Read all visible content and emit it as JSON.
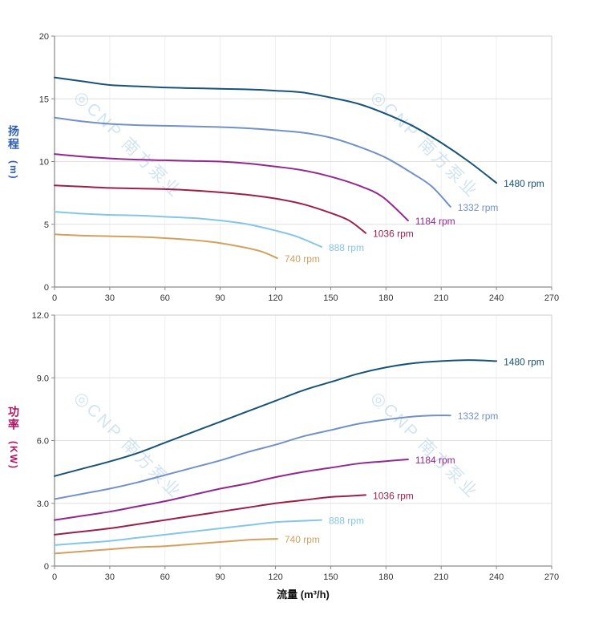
{
  "x_axis_title": "流量 (m³/h)",
  "watermark": {
    "text": "◎CNP 南方泵业",
    "color": "#aecfe8"
  },
  "chart_data": "see charts",
  "charts": [
    {
      "name": "head-vs-flow",
      "type": "line",
      "ylabel": "扬程",
      "ylabel_unit": "(m)",
      "ylabel_color": "#2f5fb3",
      "grid": true,
      "legend_position": "end-of-line",
      "xlim": [
        0,
        270
      ],
      "ylim": [
        0,
        20
      ],
      "xtick_values": [
        0,
        30,
        60,
        90,
        120,
        150,
        180,
        210,
        240,
        270
      ],
      "xtick_labels": [
        "0",
        "30",
        "60",
        "90",
        "120",
        "150",
        "180",
        "210",
        "240",
        "270"
      ],
      "ytick_values": [
        0,
        5,
        10,
        15,
        20
      ],
      "ytick_labels": [
        "0",
        "5",
        "10",
        "15",
        "20"
      ],
      "series": [
        {
          "name": "1480 rpm",
          "color": "#175379",
          "points": [
            [
              0,
              16.7
            ],
            [
              15,
              16.4
            ],
            [
              30,
              16.1
            ],
            [
              45,
              16.0
            ],
            [
              60,
              15.9
            ],
            [
              75,
              15.85
            ],
            [
              90,
              15.8
            ],
            [
              105,
              15.75
            ],
            [
              120,
              15.65
            ],
            [
              135,
              15.5
            ],
            [
              150,
              15.1
            ],
            [
              165,
              14.6
            ],
            [
              180,
              13.8
            ],
            [
              195,
              12.8
            ],
            [
              210,
              11.5
            ],
            [
              225,
              10.0
            ],
            [
              240,
              8.3
            ]
          ]
        },
        {
          "name": "1332 rpm",
          "color": "#7191c7",
          "points": [
            [
              0,
              13.5
            ],
            [
              15,
              13.2
            ],
            [
              30,
              13.0
            ],
            [
              45,
              12.9
            ],
            [
              60,
              12.85
            ],
            [
              75,
              12.8
            ],
            [
              90,
              12.75
            ],
            [
              105,
              12.65
            ],
            [
              120,
              12.5
            ],
            [
              135,
              12.3
            ],
            [
              150,
              11.9
            ],
            [
              165,
              11.2
            ],
            [
              180,
              10.3
            ],
            [
              195,
              9.0
            ],
            [
              205,
              8.0
            ],
            [
              215,
              6.4
            ]
          ]
        },
        {
          "name": "1184 rpm",
          "color": "#93278f",
          "points": [
            [
              0,
              10.6
            ],
            [
              15,
              10.4
            ],
            [
              30,
              10.25
            ],
            [
              45,
              10.15
            ],
            [
              60,
              10.1
            ],
            [
              75,
              10.05
            ],
            [
              90,
              10.0
            ],
            [
              105,
              9.85
            ],
            [
              120,
              9.6
            ],
            [
              135,
              9.3
            ],
            [
              150,
              8.8
            ],
            [
              165,
              8.1
            ],
            [
              178,
              7.2
            ],
            [
              192,
              5.3
            ]
          ]
        },
        {
          "name": "1036 rpm",
          "color": "#9e1f45",
          "points": [
            [
              0,
              8.1
            ],
            [
              15,
              8.0
            ],
            [
              30,
              7.9
            ],
            [
              45,
              7.85
            ],
            [
              60,
              7.8
            ],
            [
              75,
              7.7
            ],
            [
              90,
              7.55
            ],
            [
              105,
              7.35
            ],
            [
              120,
              7.05
            ],
            [
              135,
              6.6
            ],
            [
              150,
              5.9
            ],
            [
              160,
              5.3
            ],
            [
              169,
              4.3
            ]
          ]
        },
        {
          "name": "888 rpm",
          "color": "#85c6e8",
          "points": [
            [
              0,
              6.0
            ],
            [
              15,
              5.85
            ],
            [
              30,
              5.75
            ],
            [
              45,
              5.7
            ],
            [
              60,
              5.6
            ],
            [
              75,
              5.5
            ],
            [
              90,
              5.3
            ],
            [
              105,
              5.0
            ],
            [
              120,
              4.5
            ],
            [
              132,
              4.0
            ],
            [
              145,
              3.2
            ]
          ]
        },
        {
          "name": "740 rpm",
          "color": "#d3a05e",
          "points": [
            [
              0,
              4.2
            ],
            [
              15,
              4.1
            ],
            [
              30,
              4.05
            ],
            [
              45,
              4.0
            ],
            [
              60,
              3.9
            ],
            [
              75,
              3.75
            ],
            [
              90,
              3.5
            ],
            [
              105,
              3.1
            ],
            [
              113,
              2.8
            ],
            [
              121,
              2.3
            ]
          ]
        }
      ]
    },
    {
      "name": "power-vs-flow",
      "type": "line",
      "ylabel": "功率",
      "ylabel_unit": "(KW)",
      "ylabel_color": "#b0135f",
      "grid": true,
      "legend_position": "end-of-line",
      "xlim": [
        0,
        270
      ],
      "ylim": [
        0,
        12
      ],
      "xtick_values": [
        0,
        30,
        60,
        90,
        120,
        150,
        180,
        210,
        240,
        270
      ],
      "xtick_labels": [
        "0",
        "30",
        "60",
        "90",
        "120",
        "150",
        "180",
        "210",
        "240",
        "270"
      ],
      "ytick_values": [
        0,
        3,
        6,
        9,
        12
      ],
      "ytick_labels": [
        "0",
        "3.0",
        "6.0",
        "9.0",
        "12.0"
      ],
      "series": [
        {
          "name": "1480 rpm",
          "color": "#175379",
          "points": [
            [
              0,
              4.3
            ],
            [
              15,
              4.65
            ],
            [
              30,
              5.0
            ],
            [
              45,
              5.4
            ],
            [
              60,
              5.9
            ],
            [
              75,
              6.4
            ],
            [
              90,
              6.9
            ],
            [
              105,
              7.4
            ],
            [
              120,
              7.9
            ],
            [
              135,
              8.4
            ],
            [
              150,
              8.8
            ],
            [
              165,
              9.2
            ],
            [
              180,
              9.5
            ],
            [
              195,
              9.7
            ],
            [
              210,
              9.8
            ],
            [
              225,
              9.85
            ],
            [
              240,
              9.8
            ]
          ]
        },
        {
          "name": "1332 rpm",
          "color": "#7191c7",
          "points": [
            [
              0,
              3.2
            ],
            [
              15,
              3.45
            ],
            [
              30,
              3.7
            ],
            [
              45,
              4.0
            ],
            [
              60,
              4.35
            ],
            [
              75,
              4.7
            ],
            [
              90,
              5.05
            ],
            [
              105,
              5.45
            ],
            [
              120,
              5.8
            ],
            [
              135,
              6.2
            ],
            [
              150,
              6.5
            ],
            [
              165,
              6.8
            ],
            [
              180,
              7.0
            ],
            [
              195,
              7.15
            ],
            [
              205,
              7.2
            ],
            [
              215,
              7.2
            ]
          ]
        },
        {
          "name": "1184 rpm",
          "color": "#93278f",
          "points": [
            [
              0,
              2.2
            ],
            [
              15,
              2.4
            ],
            [
              30,
              2.6
            ],
            [
              45,
              2.85
            ],
            [
              60,
              3.1
            ],
            [
              75,
              3.4
            ],
            [
              90,
              3.7
            ],
            [
              105,
              3.95
            ],
            [
              120,
              4.25
            ],
            [
              135,
              4.5
            ],
            [
              150,
              4.7
            ],
            [
              165,
              4.9
            ],
            [
              178,
              5.0
            ],
            [
              192,
              5.1
            ]
          ]
        },
        {
          "name": "1036 rpm",
          "color": "#9e1f45",
          "points": [
            [
              0,
              1.5
            ],
            [
              15,
              1.65
            ],
            [
              30,
              1.8
            ],
            [
              45,
              2.0
            ],
            [
              60,
              2.2
            ],
            [
              75,
              2.4
            ],
            [
              90,
              2.6
            ],
            [
              105,
              2.8
            ],
            [
              120,
              3.0
            ],
            [
              135,
              3.15
            ],
            [
              150,
              3.3
            ],
            [
              160,
              3.35
            ],
            [
              169,
              3.4
            ]
          ]
        },
        {
          "name": "888 rpm",
          "color": "#85c6e8",
          "points": [
            [
              0,
              1.0
            ],
            [
              15,
              1.1
            ],
            [
              30,
              1.2
            ],
            [
              45,
              1.35
            ],
            [
              60,
              1.5
            ],
            [
              75,
              1.65
            ],
            [
              90,
              1.8
            ],
            [
              105,
              1.95
            ],
            [
              120,
              2.1
            ],
            [
              132,
              2.15
            ],
            [
              145,
              2.2
            ]
          ]
        },
        {
          "name": "740 rpm",
          "color": "#d3a05e",
          "points": [
            [
              0,
              0.6
            ],
            [
              15,
              0.7
            ],
            [
              30,
              0.8
            ],
            [
              45,
              0.9
            ],
            [
              60,
              0.95
            ],
            [
              75,
              1.05
            ],
            [
              90,
              1.15
            ],
            [
              105,
              1.25
            ],
            [
              113,
              1.28
            ],
            [
              121,
              1.3
            ]
          ]
        }
      ]
    }
  ]
}
